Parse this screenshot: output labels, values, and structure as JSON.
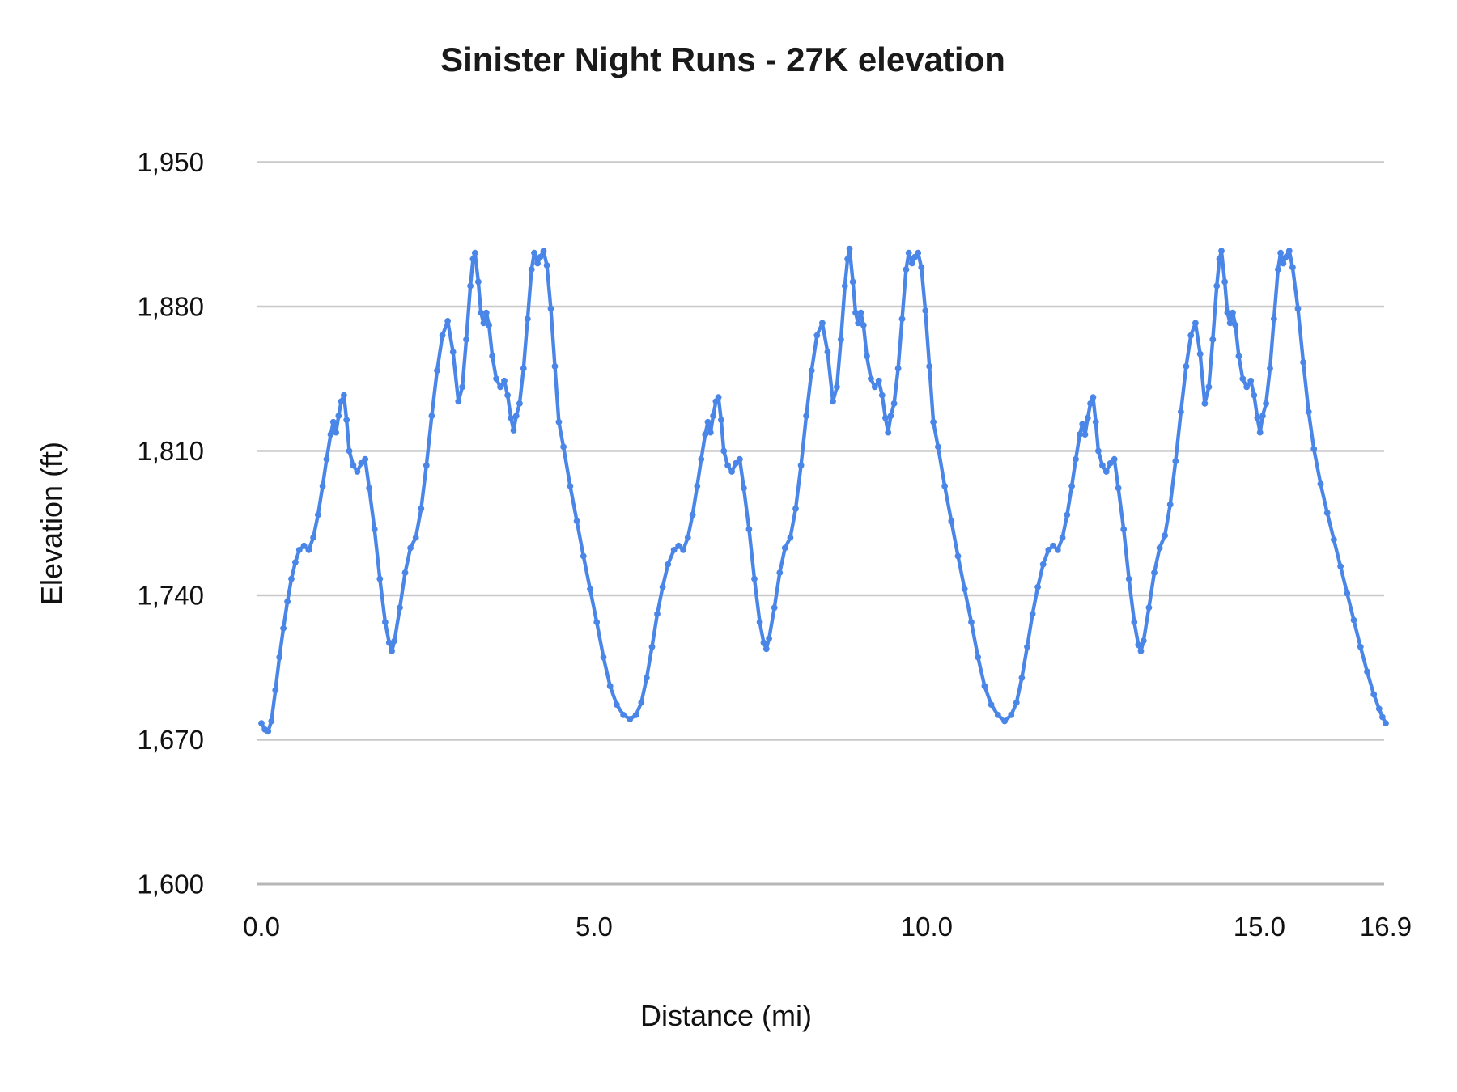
{
  "title": "Sinister Night Runs - 27K elevation",
  "colors": {
    "series": "#4a86e8",
    "gridline": "#c9c9c9",
    "baseline": "#b7b7b7",
    "text": "#111111",
    "background": "#ffffff"
  },
  "chart_data": {
    "type": "line",
    "title": "Sinister Night Runs - 27K elevation",
    "xlabel": "Distance (mi)",
    "ylabel": "Elevation (ft)",
    "xlim": [
      0,
      16.9
    ],
    "ylim": [
      1600,
      1950
    ],
    "grid": "horizontal-only",
    "legend": "none",
    "x_ticks": [
      {
        "value": 0.0,
        "label": "0.0"
      },
      {
        "value": 5.0,
        "label": "5.0"
      },
      {
        "value": 10.0,
        "label": "10.0"
      },
      {
        "value": 15.0,
        "label": "15.0"
      },
      {
        "value": 16.9,
        "label": "16.9"
      }
    ],
    "y_ticks": [
      {
        "value": 1600,
        "label": "1,600"
      },
      {
        "value": 1670,
        "label": "1,670"
      },
      {
        "value": 1740,
        "label": "1,740"
      },
      {
        "value": 1810,
        "label": "1,810"
      },
      {
        "value": 1880,
        "label": "1,880"
      },
      {
        "value": 1950,
        "label": "1,950"
      }
    ],
    "series": [
      {
        "name": "Elevation",
        "color": "#4a86e8",
        "marker_radius": 3.9,
        "line_width": 4.4,
        "points": [
          [
            0.0,
            1678
          ],
          [
            0.05,
            1675
          ],
          [
            0.1,
            1674
          ],
          [
            0.15,
            1679
          ],
          [
            0.21,
            1694
          ],
          [
            0.27,
            1710
          ],
          [
            0.33,
            1724
          ],
          [
            0.39,
            1737
          ],
          [
            0.45,
            1748
          ],
          [
            0.51,
            1756
          ],
          [
            0.57,
            1762
          ],
          [
            0.64,
            1764
          ],
          [
            0.71,
            1762
          ],
          [
            0.78,
            1768
          ],
          [
            0.85,
            1779
          ],
          [
            0.92,
            1793
          ],
          [
            0.98,
            1806
          ],
          [
            1.04,
            1818
          ],
          [
            1.08,
            1824
          ],
          [
            1.12,
            1819
          ],
          [
            1.16,
            1827
          ],
          [
            1.2,
            1834
          ],
          [
            1.24,
            1837
          ],
          [
            1.28,
            1825
          ],
          [
            1.32,
            1810
          ],
          [
            1.38,
            1803
          ],
          [
            1.44,
            1800
          ],
          [
            1.5,
            1804
          ],
          [
            1.56,
            1806
          ],
          [
            1.62,
            1792
          ],
          [
            1.7,
            1772
          ],
          [
            1.78,
            1748
          ],
          [
            1.86,
            1727
          ],
          [
            1.92,
            1717
          ],
          [
            1.96,
            1713
          ],
          [
            2.0,
            1718
          ],
          [
            2.08,
            1734
          ],
          [
            2.16,
            1751
          ],
          [
            2.24,
            1763
          ],
          [
            2.32,
            1768
          ],
          [
            2.4,
            1782
          ],
          [
            2.48,
            1803
          ],
          [
            2.56,
            1827
          ],
          [
            2.64,
            1849
          ],
          [
            2.72,
            1866
          ],
          [
            2.8,
            1873
          ],
          [
            2.88,
            1858
          ],
          [
            2.96,
            1834
          ],
          [
            3.02,
            1841
          ],
          [
            3.08,
            1864
          ],
          [
            3.14,
            1890
          ],
          [
            3.18,
            1903
          ],
          [
            3.21,
            1906
          ],
          [
            3.26,
            1892
          ],
          [
            3.3,
            1877
          ],
          [
            3.34,
            1872
          ],
          [
            3.38,
            1877
          ],
          [
            3.42,
            1871
          ],
          [
            3.47,
            1856
          ],
          [
            3.53,
            1845
          ],
          [
            3.59,
            1841
          ],
          [
            3.65,
            1844
          ],
          [
            3.7,
            1837
          ],
          [
            3.75,
            1826
          ],
          [
            3.79,
            1820
          ],
          [
            3.83,
            1827
          ],
          [
            3.88,
            1833
          ],
          [
            3.94,
            1850
          ],
          [
            4.0,
            1874
          ],
          [
            4.06,
            1898
          ],
          [
            4.1,
            1906
          ],
          [
            4.15,
            1901
          ],
          [
            4.19,
            1904
          ],
          [
            4.24,
            1907
          ],
          [
            4.29,
            1900
          ],
          [
            4.35,
            1879
          ],
          [
            4.41,
            1851
          ],
          [
            4.47,
            1824
          ],
          [
            4.54,
            1812
          ],
          [
            4.64,
            1793
          ],
          [
            4.74,
            1776
          ],
          [
            4.84,
            1759
          ],
          [
            4.94,
            1743
          ],
          [
            5.04,
            1727
          ],
          [
            5.14,
            1710
          ],
          [
            5.24,
            1696
          ],
          [
            5.34,
            1687
          ],
          [
            5.44,
            1682
          ],
          [
            5.54,
            1680
          ],
          [
            5.63,
            1682
          ],
          [
            5.71,
            1688
          ],
          [
            5.79,
            1700
          ],
          [
            5.87,
            1715
          ],
          [
            5.95,
            1731
          ],
          [
            6.03,
            1744
          ],
          [
            6.11,
            1755
          ],
          [
            6.2,
            1762
          ],
          [
            6.27,
            1764
          ],
          [
            6.34,
            1762
          ],
          [
            6.41,
            1768
          ],
          [
            6.48,
            1779
          ],
          [
            6.55,
            1793
          ],
          [
            6.61,
            1806
          ],
          [
            6.67,
            1818
          ],
          [
            6.71,
            1824
          ],
          [
            6.75,
            1819
          ],
          [
            6.79,
            1827
          ],
          [
            6.83,
            1834
          ],
          [
            6.87,
            1836
          ],
          [
            6.91,
            1825
          ],
          [
            6.95,
            1810
          ],
          [
            7.01,
            1803
          ],
          [
            7.07,
            1800
          ],
          [
            7.13,
            1804
          ],
          [
            7.19,
            1806
          ],
          [
            7.25,
            1792
          ],
          [
            7.33,
            1772
          ],
          [
            7.41,
            1748
          ],
          [
            7.49,
            1727
          ],
          [
            7.55,
            1717
          ],
          [
            7.59,
            1714
          ],
          [
            7.63,
            1719
          ],
          [
            7.71,
            1734
          ],
          [
            7.79,
            1751
          ],
          [
            7.87,
            1763
          ],
          [
            7.95,
            1768
          ],
          [
            8.03,
            1782
          ],
          [
            8.11,
            1803
          ],
          [
            8.19,
            1827
          ],
          [
            8.27,
            1849
          ],
          [
            8.35,
            1866
          ],
          [
            8.43,
            1872
          ],
          [
            8.51,
            1858
          ],
          [
            8.59,
            1834
          ],
          [
            8.65,
            1841
          ],
          [
            8.71,
            1864
          ],
          [
            8.77,
            1890
          ],
          [
            8.81,
            1903
          ],
          [
            8.84,
            1908
          ],
          [
            8.89,
            1892
          ],
          [
            8.93,
            1877
          ],
          [
            8.97,
            1872
          ],
          [
            9.01,
            1877
          ],
          [
            9.05,
            1871
          ],
          [
            9.1,
            1856
          ],
          [
            9.16,
            1845
          ],
          [
            9.22,
            1841
          ],
          [
            9.28,
            1844
          ],
          [
            9.33,
            1837
          ],
          [
            9.38,
            1826
          ],
          [
            9.42,
            1819
          ],
          [
            9.46,
            1827
          ],
          [
            9.51,
            1833
          ],
          [
            9.57,
            1850
          ],
          [
            9.63,
            1874
          ],
          [
            9.69,
            1898
          ],
          [
            9.73,
            1906
          ],
          [
            9.78,
            1901
          ],
          [
            9.82,
            1904
          ],
          [
            9.87,
            1906
          ],
          [
            9.92,
            1899
          ],
          [
            9.98,
            1878
          ],
          [
            10.04,
            1851
          ],
          [
            10.1,
            1824
          ],
          [
            10.17,
            1812
          ],
          [
            10.27,
            1793
          ],
          [
            10.37,
            1776
          ],
          [
            10.47,
            1759
          ],
          [
            10.57,
            1743
          ],
          [
            10.67,
            1727
          ],
          [
            10.77,
            1710
          ],
          [
            10.87,
            1696
          ],
          [
            10.97,
            1687
          ],
          [
            11.07,
            1682
          ],
          [
            11.17,
            1679
          ],
          [
            11.27,
            1682
          ],
          [
            11.35,
            1688
          ],
          [
            11.43,
            1700
          ],
          [
            11.51,
            1715
          ],
          [
            11.59,
            1731
          ],
          [
            11.67,
            1744
          ],
          [
            11.75,
            1755
          ],
          [
            11.83,
            1762
          ],
          [
            11.9,
            1764
          ],
          [
            11.97,
            1762
          ],
          [
            12.04,
            1768
          ],
          [
            12.11,
            1779
          ],
          [
            12.18,
            1793
          ],
          [
            12.24,
            1806
          ],
          [
            12.3,
            1818
          ],
          [
            12.34,
            1823
          ],
          [
            12.38,
            1818
          ],
          [
            12.42,
            1826
          ],
          [
            12.46,
            1833
          ],
          [
            12.5,
            1836
          ],
          [
            12.54,
            1824
          ],
          [
            12.58,
            1810
          ],
          [
            12.64,
            1803
          ],
          [
            12.7,
            1800
          ],
          [
            12.76,
            1804
          ],
          [
            12.82,
            1806
          ],
          [
            12.88,
            1792
          ],
          [
            12.96,
            1772
          ],
          [
            13.04,
            1748
          ],
          [
            13.12,
            1727
          ],
          [
            13.18,
            1716
          ],
          [
            13.22,
            1713
          ],
          [
            13.26,
            1718
          ],
          [
            13.34,
            1734
          ],
          [
            13.42,
            1751
          ],
          [
            13.5,
            1763
          ],
          [
            13.58,
            1769
          ],
          [
            13.66,
            1784
          ],
          [
            13.74,
            1805
          ],
          [
            13.82,
            1829
          ],
          [
            13.9,
            1851
          ],
          [
            13.97,
            1866
          ],
          [
            14.04,
            1872
          ],
          [
            14.11,
            1857
          ],
          [
            14.18,
            1833
          ],
          [
            14.24,
            1841
          ],
          [
            14.3,
            1864
          ],
          [
            14.36,
            1890
          ],
          [
            14.4,
            1903
          ],
          [
            14.43,
            1907
          ],
          [
            14.48,
            1892
          ],
          [
            14.52,
            1877
          ],
          [
            14.56,
            1872
          ],
          [
            14.6,
            1877
          ],
          [
            14.64,
            1871
          ],
          [
            14.69,
            1856
          ],
          [
            14.75,
            1845
          ],
          [
            14.81,
            1841
          ],
          [
            14.87,
            1844
          ],
          [
            14.92,
            1837
          ],
          [
            14.97,
            1826
          ],
          [
            15.01,
            1819
          ],
          [
            15.05,
            1827
          ],
          [
            15.1,
            1833
          ],
          [
            15.16,
            1850
          ],
          [
            15.22,
            1874
          ],
          [
            15.28,
            1898
          ],
          [
            15.32,
            1906
          ],
          [
            15.36,
            1901
          ],
          [
            15.4,
            1904
          ],
          [
            15.45,
            1907
          ],
          [
            15.5,
            1899
          ],
          [
            15.58,
            1879
          ],
          [
            15.66,
            1853
          ],
          [
            15.74,
            1829
          ],
          [
            15.82,
            1811
          ],
          [
            15.92,
            1794
          ],
          [
            16.02,
            1780
          ],
          [
            16.12,
            1767
          ],
          [
            16.22,
            1754
          ],
          [
            16.32,
            1741
          ],
          [
            16.42,
            1728
          ],
          [
            16.52,
            1715
          ],
          [
            16.62,
            1703
          ],
          [
            16.72,
            1692
          ],
          [
            16.8,
            1685
          ],
          [
            16.85,
            1681
          ],
          [
            16.9,
            1678
          ]
        ]
      }
    ]
  }
}
